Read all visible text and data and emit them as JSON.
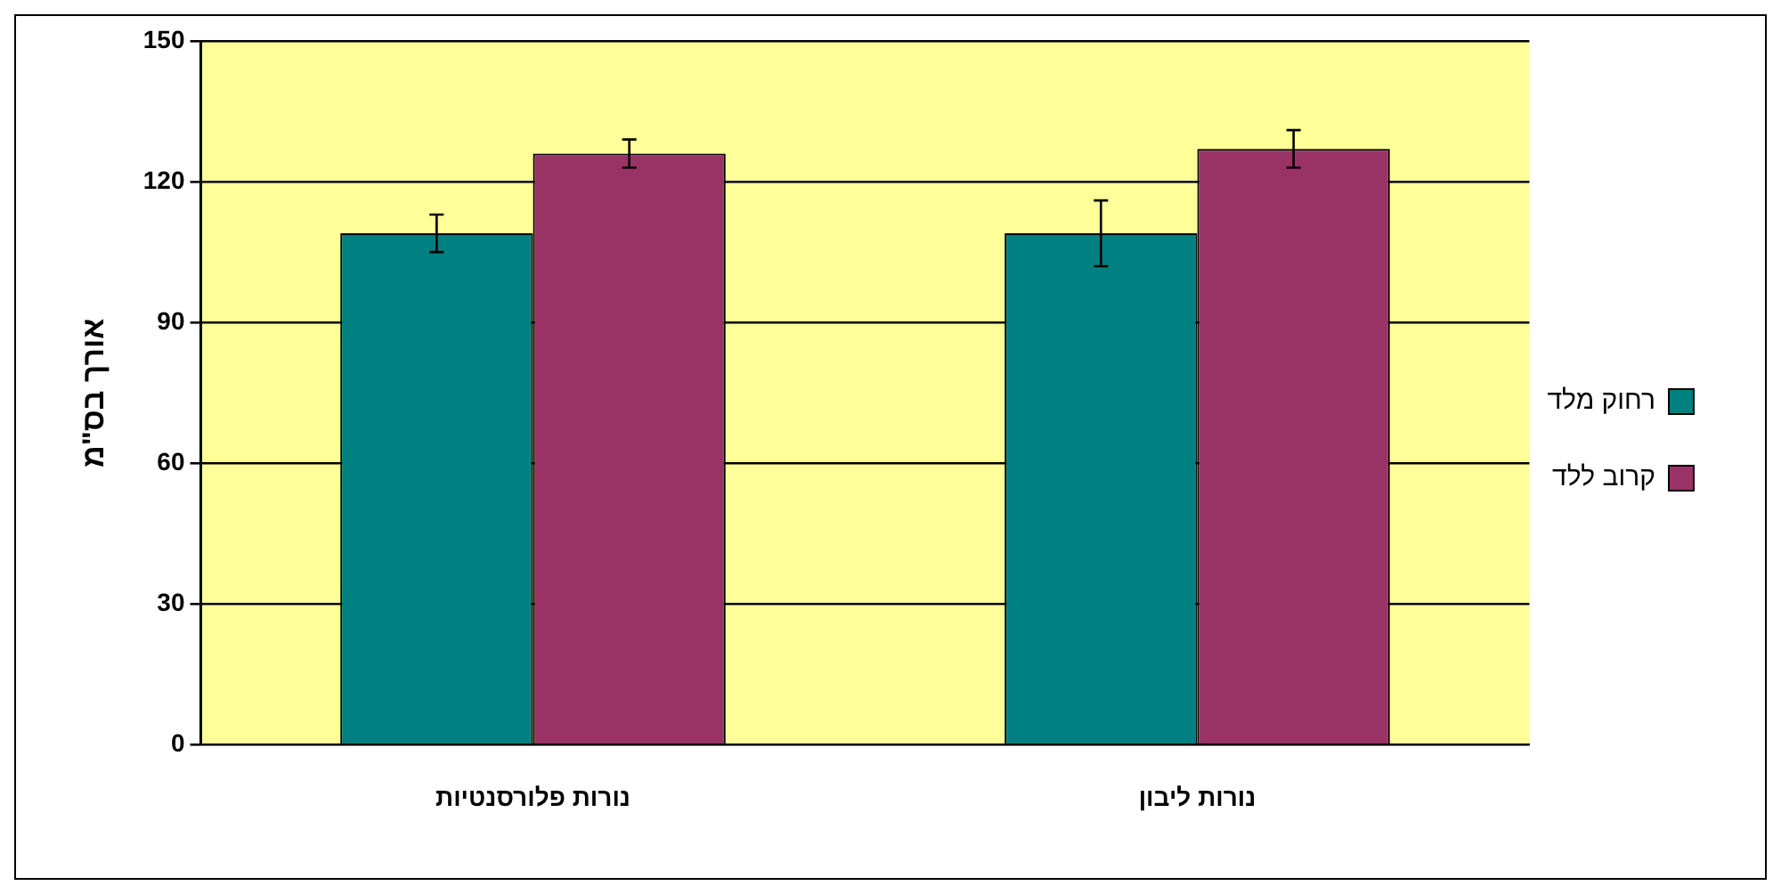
{
  "chart_data": {
    "type": "bar",
    "ylabel": "אורך בס\"מ",
    "categories": [
      "נורות פלורסנטיות",
      "נורות ליבון"
    ],
    "series": [
      {
        "name": "רחוק מלד",
        "color": "#008080",
        "values": [
          109,
          109
        ],
        "errors": [
          4,
          7
        ]
      },
      {
        "name": "קרוב ללד",
        "color": "#993366",
        "values": [
          126,
          127
        ],
        "errors": [
          3,
          4
        ]
      }
    ],
    "ylim": [
      0,
      150
    ],
    "yticks": [
      0,
      30,
      60,
      90,
      120,
      150
    ],
    "grid": "y",
    "legend": "right"
  }
}
